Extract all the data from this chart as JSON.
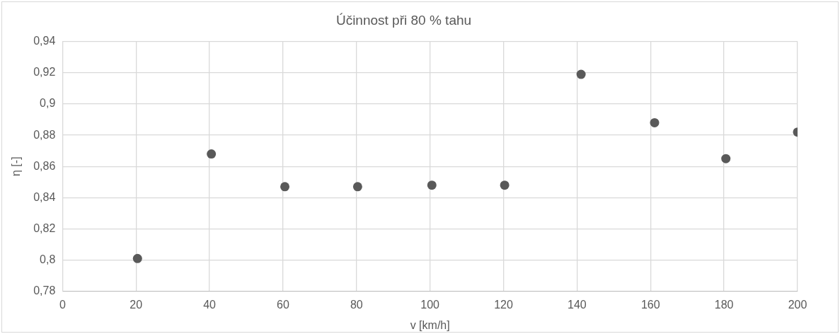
{
  "chart_data": {
    "type": "scatter",
    "title": "Účinnost při 80 % tahu",
    "xlabel": "v [km/h]",
    "ylabel": "η [-]",
    "x": [
      20.4,
      40.5,
      60.5,
      80.3,
      100.5,
      120.3,
      141.1,
      161.1,
      180.5,
      200
    ],
    "series": [
      {
        "color": "#595959",
        "values": [
          0.801,
          0.868,
          0.847,
          0.847,
          0.848,
          0.848,
          0.919,
          0.888,
          0.865,
          0.882
        ]
      }
    ],
    "xlim": [
      0,
      200
    ],
    "xticks": [
      0,
      20,
      40,
      60,
      80,
      100,
      120,
      140,
      160,
      180,
      200
    ],
    "ylim": [
      0.78,
      0.94
    ],
    "yticks": [
      {
        "value": 0.78,
        "label": "0,78"
      },
      {
        "value": 0.8,
        "label": "0,8"
      },
      {
        "value": 0.82,
        "label": "0,82"
      },
      {
        "value": 0.84,
        "label": "0,84"
      },
      {
        "value": 0.86,
        "label": "0,86"
      },
      {
        "value": 0.88,
        "label": "0,88"
      },
      {
        "value": 0.9,
        "label": "0,9"
      },
      {
        "value": 0.92,
        "label": "0,92"
      },
      {
        "value": 0.94,
        "label": "0,94"
      }
    ],
    "grid": true,
    "legend": false,
    "marker": "circle"
  }
}
